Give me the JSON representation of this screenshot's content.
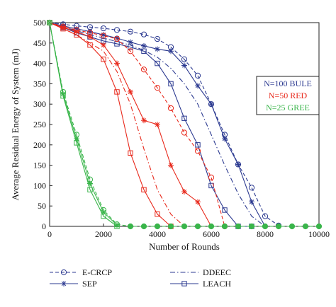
{
  "chart_data": {
    "type": "line",
    "xlabel": "Number of Rounds",
    "ylabel": "Average Residual Energy of System (mJ)",
    "xlim": [
      0,
      10000
    ],
    "ylim": [
      0,
      500
    ],
    "x_ticks": [
      "0",
      "2000",
      "4000",
      "6000",
      "8000",
      "10000"
    ],
    "y_ticks": [
      "0",
      "50",
      "100",
      "150",
      "200",
      "250",
      "300",
      "350",
      "400",
      "450",
      "500"
    ],
    "grid": false,
    "group_labels": [
      {
        "text": "N=100 BULE",
        "color": "#2b3990"
      },
      {
        "text": "N=50 RED",
        "color": "#e8291c"
      },
      {
        "text": "N=25 GREE",
        "color": "#39b54a"
      }
    ],
    "legend": [
      {
        "label": "E-CRCP",
        "style": "dashed",
        "marker": "circle"
      },
      {
        "label": "DDEEC",
        "style": "dashdot",
        "marker": "none"
      },
      {
        "label": "SEP",
        "style": "solid",
        "marker": "star"
      },
      {
        "label": "LEACH",
        "style": "solid",
        "marker": "square"
      }
    ],
    "colors": {
      "N=100": "#2b3990",
      "N=50": "#e8291c",
      "N=25": "#39b54a"
    },
    "series": [
      {
        "group": "N=100",
        "protocol": "E-CRCP",
        "x": [
          0,
          500,
          1000,
          1500,
          2000,
          2500,
          3000,
          3500,
          4000,
          4500,
          5000,
          5500,
          6000,
          6500,
          7000,
          7500,
          8000,
          8500
        ],
        "y": [
          500,
          496,
          492,
          489,
          486,
          482,
          478,
          471,
          460,
          440,
          410,
          370,
          300,
          225,
          152,
          95,
          25,
          2
        ]
      },
      {
        "group": "N=100",
        "protocol": "DDEEC",
        "x": [
          0,
          1000,
          2000,
          3000,
          3500,
          4000,
          4500,
          5000,
          5500,
          6000,
          6500,
          7000,
          7500,
          8000
        ],
        "y": [
          500,
          480,
          462,
          445,
          432,
          415,
          388,
          350,
          300,
          225,
          150,
          80,
          25,
          0
        ]
      },
      {
        "group": "N=100",
        "protocol": "SEP",
        "x": [
          0,
          500,
          1000,
          1500,
          2000,
          2500,
          3000,
          3500,
          4000,
          4500,
          5000,
          5500,
          6000,
          6500,
          7000,
          7500,
          8000
        ],
        "y": [
          500,
          492,
          485,
          478,
          470,
          462,
          452,
          443,
          435,
          430,
          395,
          345,
          300,
          215,
          152,
          60,
          0
        ]
      },
      {
        "group": "N=100",
        "protocol": "LEACH",
        "x": [
          0,
          500,
          1000,
          1500,
          2000,
          2500,
          3000,
          3500,
          4000,
          4500,
          5000,
          5500,
          6000,
          6500,
          7000,
          7500
        ],
        "y": [
          500,
          488,
          475,
          465,
          455,
          448,
          440,
          430,
          400,
          350,
          265,
          200,
          100,
          40,
          0,
          0
        ]
      },
      {
        "group": "N=50",
        "protocol": "E-CRCP",
        "x": [
          0,
          500,
          1000,
          1500,
          2000,
          2500,
          3000,
          3500,
          4000,
          4500,
          5000,
          5500,
          6000,
          6500
        ],
        "y": [
          500,
          490,
          482,
          475,
          468,
          460,
          430,
          385,
          340,
          290,
          230,
          185,
          120,
          0
        ]
      },
      {
        "group": "N=50",
        "protocol": "DDEEC",
        "x": [
          0,
          1000,
          2000,
          2500,
          3000,
          3500,
          4000,
          4500,
          5000
        ],
        "y": [
          500,
          470,
          430,
          380,
          300,
          190,
          90,
          30,
          0
        ]
      },
      {
        "group": "N=50",
        "protocol": "SEP",
        "x": [
          0,
          500,
          1000,
          1500,
          2000,
          2500,
          3000,
          3500,
          4000,
          4500,
          5000,
          5500,
          6000
        ],
        "y": [
          500,
          488,
          478,
          465,
          445,
          400,
          330,
          260,
          250,
          150,
          85,
          60,
          0
        ]
      },
      {
        "group": "N=50",
        "protocol": "LEACH",
        "x": [
          0,
          500,
          1000,
          1500,
          2000,
          2500,
          3000,
          3500,
          4000,
          4500
        ],
        "y": [
          500,
          485,
          470,
          445,
          410,
          330,
          180,
          90,
          30,
          0
        ]
      },
      {
        "group": "N=25",
        "protocol": "E-CRCP",
        "x": [
          0,
          500,
          1000,
          1500,
          2000,
          2500,
          3000,
          3500,
          4000,
          4500,
          5000,
          5500,
          6000,
          6500,
          7000,
          7500,
          8000,
          8500,
          9000,
          9500,
          10000
        ],
        "y": [
          500,
          330,
          225,
          115,
          40,
          5,
          0,
          0,
          0,
          0,
          0,
          0,
          0,
          0,
          0,
          0,
          0,
          0,
          0,
          0,
          0
        ]
      },
      {
        "group": "N=25",
        "protocol": "SEP",
        "x": [
          0,
          500,
          1000,
          1500,
          2000,
          2500
        ],
        "y": [
          500,
          325,
          215,
          105,
          35,
          3
        ]
      },
      {
        "group": "N=25",
        "protocol": "LEACH",
        "x": [
          0,
          500,
          1000,
          1500,
          2000,
          2500
        ],
        "y": [
          500,
          320,
          205,
          90,
          25,
          0
        ]
      }
    ]
  }
}
